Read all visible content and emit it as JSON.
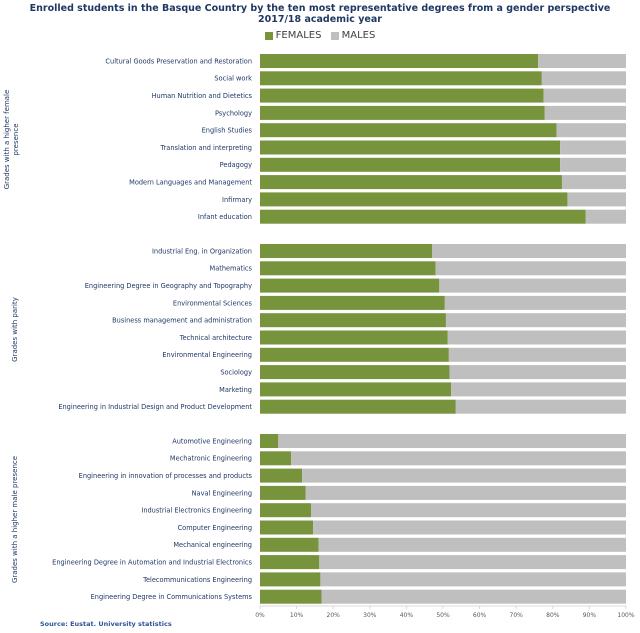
{
  "chart_data": {
    "type": "bar",
    "orientation": "horizontal",
    "stacked": "percent",
    "title_lines": [
      "Enrolled students in the Basque Country by the ten most representative degrees from a gender perspective",
      "2017/18 academic year"
    ],
    "source": "Source: Eustat. University statistics",
    "legend_position": "top",
    "series": [
      {
        "name": "FEMALES",
        "color": "#77933c"
      },
      {
        "name": "MALES",
        "color": "#bfbfbf"
      }
    ],
    "x_ticks": [
      "0%",
      "10%",
      "20%",
      "30%",
      "40%",
      "50%",
      "60%",
      "70%",
      "80%",
      "90%",
      "100%"
    ],
    "xlim": [
      0,
      100
    ],
    "grid": false,
    "groups": [
      {
        "label_lines": [
          "Grades with a higher female",
          "presence"
        ],
        "categories": [
          "Cultural Goods Preservation and Restoration",
          "Social work",
          "Human Nutrition and Dietetics",
          "Psychology",
          "English Studies",
          "Translation and interpreting",
          "Pedagogy",
          "Modern Languages and Management",
          "Infirmary",
          "Infant education"
        ],
        "females_pct": [
          76,
          77,
          77.5,
          77.8,
          81,
          82,
          82,
          82.5,
          84,
          89
        ]
      },
      {
        "label_lines": [
          "Grades with parity"
        ],
        "categories": [
          "Industrial Eng. in Organization",
          "Mathematics",
          "Engineering Degree in Geography and Topography",
          "Environmental Sciences",
          "Business management and administration",
          "Technical architecture",
          "Environmental Engineering",
          "Sociology",
          "Marketing",
          "Engineering in Industrial Design and Product Development"
        ],
        "females_pct": [
          47,
          48,
          49,
          50.5,
          50.8,
          51.3,
          51.6,
          51.8,
          52.2,
          53.5
        ]
      },
      {
        "label_lines": [
          "Grades with a higher male presence"
        ],
        "categories": [
          "Automotive Engineering",
          "Mechatronic Engineering",
          "Engineering in innovation of processes and products",
          "Naval Engineering",
          "Industrial Electronics Engineering",
          "Computer Engineering",
          "Mechanical engineering",
          "Engineering Degree in Automation and Industrial Electronics",
          "Telecommunications Engineering",
          "Engineering Degree in Communications Systems"
        ],
        "females_pct": [
          5,
          8.5,
          11.5,
          12.5,
          14,
          14.5,
          16,
          16.2,
          16.5,
          16.8
        ]
      }
    ]
  }
}
